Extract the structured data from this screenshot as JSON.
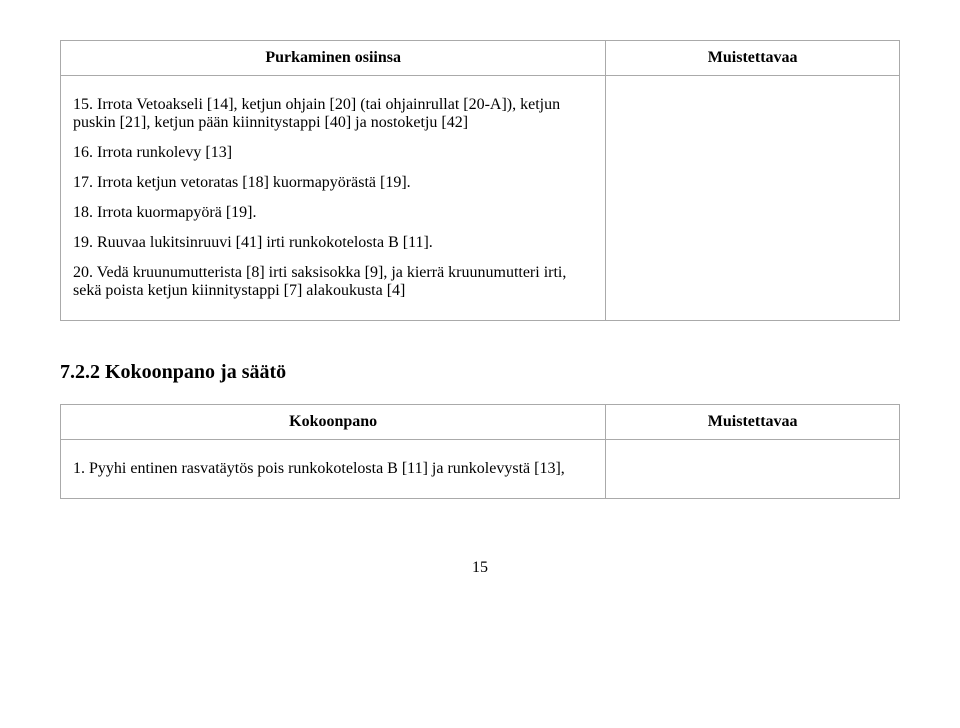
{
  "table1": {
    "header_left": "Purkaminen osiinsa",
    "header_right": "Muistettavaa",
    "steps": [
      "15. Irrota Vetoakseli [14], ketjun ohjain [20] (tai ohjainrullat [20-A]), ketjun puskin [21], ketjun pään kiinnitystappi [40] ja nostoketju [42]",
      "16. Irrota runkolevy [13]",
      "17. Irrota ketjun vetoratas [18] kuormapyörästä [19].",
      "18. Irrota kuormapyörä [19].",
      "19. Ruuvaa lukitsinruuvi [41] irti runkokotelosta B [11].",
      "20. Vedä kruunumutterista [8] irti saksisokka [9], ja kierrä kruunumutteri irti, sekä poista ketjun kiinnitystappi [7] alakoukusta [4]"
    ]
  },
  "section_title": "7.2.2 Kokoonpano ja säätö",
  "table2": {
    "header_left": "Kokoonpano",
    "header_right": "Muistettavaa",
    "step": "1. Pyyhi entinen rasvatäytös pois runkokotelosta B [11] ja runkolevystä [13],"
  },
  "page_number": "15"
}
